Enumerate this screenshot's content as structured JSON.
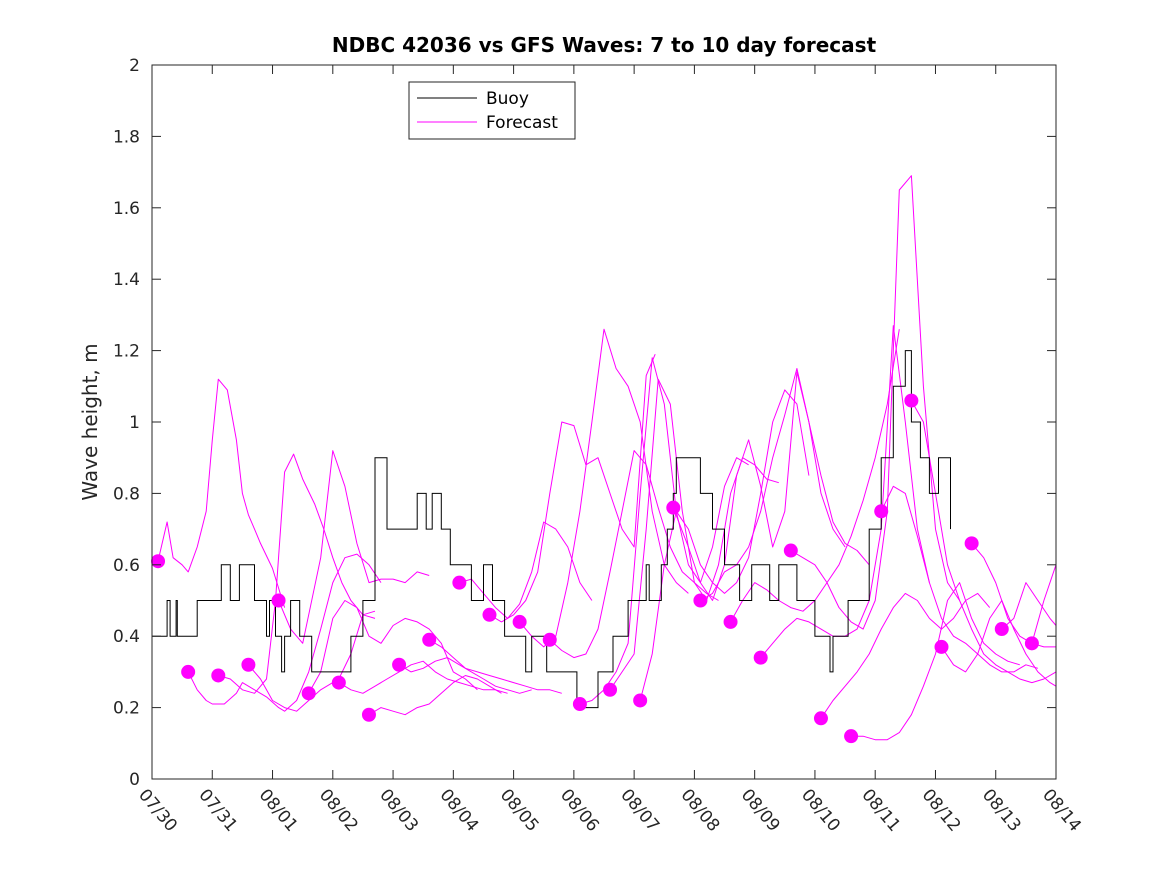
{
  "chart_data": {
    "type": "line",
    "title": "NDBC 42036 vs GFS Waves: 7 to 10 day forecast",
    "xlabel": "",
    "ylabel": "Wave height, m",
    "xlim": [
      0,
      15
    ],
    "ylim": [
      0,
      2
    ],
    "x_unit": "days since 07/30",
    "yticks": [
      0,
      0.2,
      0.4,
      0.6,
      0.8,
      1,
      1.2,
      1.4,
      1.6,
      1.8,
      2
    ],
    "ytick_labels": [
      "0",
      "0.2",
      "0.4",
      "0.6",
      "0.8",
      "1",
      "1.2",
      "1.4",
      "1.6",
      "1.8",
      "2"
    ],
    "xtick_labels": [
      "07/30",
      "07/31",
      "08/01",
      "08/02",
      "08/03",
      "08/04",
      "08/05",
      "08/06",
      "08/07",
      "08/08",
      "08/09",
      "08/10",
      "08/11",
      "08/12",
      "08/13",
      "08/14"
    ],
    "legend": {
      "position": "top-left",
      "entries": [
        {
          "label": "Buoy",
          "color": "#000000"
        },
        {
          "label": "Forecast",
          "color": "#ff00ff"
        }
      ]
    },
    "colors": {
      "buoy": "#000000",
      "forecast": "#ff00ff"
    },
    "buoy": {
      "name": "Buoy",
      "x": [
        0,
        0.25,
        0.3,
        0.4,
        0.42,
        0.5,
        0.75,
        1.15,
        1.3,
        1.45,
        1.7,
        1.9,
        1.95,
        2.05,
        2.15,
        2.2,
        2.3,
        2.45,
        2.55,
        2.65,
        2.8,
        3.0,
        3.3,
        3.5,
        3.7,
        3.9,
        4.4,
        4.55,
        4.65,
        4.8,
        4.95,
        5.3,
        5.5,
        5.65,
        5.85,
        6.2,
        6.3,
        6.55,
        7.05,
        7.4,
        7.65,
        7.9,
        8.2,
        8.25,
        8.45,
        8.55,
        8.65,
        8.7,
        9.1,
        9.3,
        9.5,
        9.75,
        9.95,
        10.25,
        10.4,
        10.7,
        11.0,
        11.25,
        11.3,
        11.55,
        11.9,
        12.1,
        12.3,
        12.5,
        12.6,
        12.75,
        12.9,
        13.05,
        13.25
      ],
      "y": [
        0.4,
        0.5,
        0.4,
        0.5,
        0.4,
        0.4,
        0.5,
        0.6,
        0.5,
        0.6,
        0.5,
        0.4,
        0.5,
        0.4,
        0.3,
        0.4,
        0.5,
        0.4,
        0.4,
        0.3,
        0.3,
        0.3,
        0.4,
        0.5,
        0.9,
        0.7,
        0.8,
        0.7,
        0.8,
        0.7,
        0.6,
        0.5,
        0.6,
        0.5,
        0.4,
        0.3,
        0.4,
        0.3,
        0.2,
        0.3,
        0.4,
        0.5,
        0.6,
        0.5,
        0.6,
        0.7,
        0.8,
        0.9,
        0.8,
        0.7,
        0.6,
        0.5,
        0.6,
        0.5,
        0.6,
        0.5,
        0.4,
        0.3,
        0.4,
        0.5,
        0.7,
        0.9,
        1.1,
        1.2,
        1.0,
        0.9,
        0.8,
        0.9,
        0.7
      ]
    },
    "series": [
      {
        "x": [
          0.1,
          0.25,
          0.35,
          0.5,
          0.6,
          0.75,
          0.9,
          1.0,
          1.1,
          1.25,
          1.4,
          1.5,
          1.6,
          1.7,
          1.8,
          2.0,
          2.2
        ],
        "values": [
          0.61,
          0.72,
          0.62,
          0.6,
          0.58,
          0.65,
          0.75,
          0.95,
          1.12,
          1.09,
          0.95,
          0.8,
          0.74,
          0.7,
          0.66,
          0.59,
          0.48
        ]
      },
      {
        "x": [
          0.6,
          0.75,
          0.9,
          1.0,
          1.2,
          1.4,
          1.5,
          1.7,
          1.9,
          2.1,
          2.2,
          2.4,
          2.6,
          2.8,
          3.0,
          3.2,
          3.4,
          3.6,
          3.8
        ],
        "values": [
          0.3,
          0.25,
          0.22,
          0.21,
          0.21,
          0.24,
          0.27,
          0.25,
          0.23,
          0.2,
          0.19,
          0.22,
          0.3,
          0.42,
          0.55,
          0.62,
          0.63,
          0.6,
          0.55
        ]
      },
      {
        "x": [
          1.1,
          1.3,
          1.5,
          1.7,
          1.9,
          2.05,
          2.2,
          2.35,
          2.5,
          2.7,
          2.85,
          3.0,
          3.15,
          3.3,
          3.5,
          3.7
        ],
        "values": [
          0.29,
          0.28,
          0.25,
          0.24,
          0.28,
          0.5,
          0.86,
          0.91,
          0.84,
          0.77,
          0.7,
          0.62,
          0.55,
          0.5,
          0.46,
          0.45
        ]
      },
      {
        "x": [
          1.6,
          1.8,
          2.0,
          2.2,
          2.4,
          2.6,
          2.8,
          3.0,
          3.1,
          3.3,
          3.5,
          3.7
        ],
        "values": [
          0.32,
          0.28,
          0.22,
          0.2,
          0.19,
          0.22,
          0.25,
          0.27,
          0.28,
          0.35,
          0.46,
          0.47
        ]
      },
      {
        "x": [
          2.1,
          2.3,
          2.5,
          2.6,
          2.8,
          3.0,
          3.2,
          3.4,
          3.6,
          3.8,
          4.0,
          4.2,
          4.4,
          4.6
        ],
        "values": [
          0.5,
          0.42,
          0.38,
          0.46,
          0.62,
          0.92,
          0.82,
          0.66,
          0.55,
          0.56,
          0.56,
          0.55,
          0.58,
          0.57
        ]
      },
      {
        "x": [
          2.6,
          2.8,
          3.0,
          3.2,
          3.4,
          3.6,
          3.8,
          4.0,
          4.2,
          4.4,
          4.6,
          4.8,
          5.0,
          5.2,
          5.4
        ],
        "values": [
          0.24,
          0.3,
          0.45,
          0.5,
          0.48,
          0.4,
          0.38,
          0.43,
          0.45,
          0.44,
          0.42,
          0.38,
          0.3,
          0.28,
          0.25
        ]
      },
      {
        "x": [
          3.1,
          3.3,
          3.5,
          3.7,
          3.9,
          4.1,
          4.3,
          4.5,
          4.7,
          4.9,
          5.1,
          5.3,
          5.5,
          5.7,
          5.9
        ],
        "values": [
          0.27,
          0.25,
          0.24,
          0.26,
          0.28,
          0.3,
          0.32,
          0.33,
          0.3,
          0.28,
          0.27,
          0.26,
          0.25,
          0.25,
          0.24
        ]
      },
      {
        "x": [
          3.6,
          3.8,
          4.0,
          4.2,
          4.4,
          4.6,
          4.8,
          5.0,
          5.2,
          5.4,
          5.6,
          5.8
        ],
        "values": [
          0.18,
          0.2,
          0.19,
          0.18,
          0.2,
          0.21,
          0.24,
          0.27,
          0.29,
          0.28,
          0.26,
          0.24
        ]
      },
      {
        "x": [
          4.1,
          4.3,
          4.5,
          4.7,
          4.9,
          5.1,
          5.3,
          5.5,
          5.7,
          5.9,
          6.1,
          6.3
        ],
        "values": [
          0.32,
          0.3,
          0.31,
          0.33,
          0.34,
          0.32,
          0.3,
          0.28,
          0.26,
          0.25,
          0.24,
          0.25
        ]
      },
      {
        "x": [
          4.6,
          4.8,
          5.0,
          5.2,
          5.4,
          5.6,
          5.8,
          6.0,
          6.2,
          6.4,
          6.6,
          6.8
        ],
        "values": [
          0.39,
          0.37,
          0.34,
          0.31,
          0.3,
          0.29,
          0.28,
          0.27,
          0.26,
          0.25,
          0.25,
          0.24
        ]
      },
      {
        "x": [
          5.1,
          5.3,
          5.5,
          5.7,
          5.9,
          6.1,
          6.3,
          6.5,
          6.7,
          6.9,
          7.1,
          7.3
        ],
        "values": [
          0.55,
          0.56,
          0.52,
          0.48,
          0.45,
          0.49,
          0.58,
          0.72,
          0.7,
          0.65,
          0.55,
          0.5
        ]
      },
      {
        "x": [
          5.6,
          5.8,
          6.0,
          6.2,
          6.4,
          6.6,
          6.8,
          7.0,
          7.2,
          7.4,
          7.6,
          7.8,
          8.0,
          8.2,
          8.35
        ],
        "values": [
          0.46,
          0.44,
          0.46,
          0.5,
          0.58,
          0.8,
          1.0,
          0.99,
          0.88,
          0.9,
          0.8,
          0.7,
          0.65,
          1.13,
          1.19
        ]
      },
      {
        "x": [
          6.1,
          6.3,
          6.5,
          6.7,
          6.9,
          7.1,
          7.3,
          7.5,
          7.7,
          7.9,
          8.1,
          8.3,
          8.5,
          8.7,
          8.9
        ],
        "values": [
          0.44,
          0.4,
          0.37,
          0.4,
          0.55,
          0.75,
          1.0,
          1.26,
          1.15,
          1.1,
          1.0,
          0.75,
          0.6,
          0.55,
          0.52
        ]
      },
      {
        "x": [
          6.6,
          6.8,
          7.0,
          7.2,
          7.4,
          7.6,
          7.8,
          8.0,
          8.2,
          8.4,
          8.6,
          8.8,
          9.0,
          9.2,
          9.4
        ],
        "values": [
          0.39,
          0.36,
          0.34,
          0.35,
          0.42,
          0.58,
          0.75,
          0.92,
          0.88,
          0.76,
          0.65,
          0.58,
          0.55,
          0.52,
          0.5
        ]
      },
      {
        "x": [
          7.1,
          7.3,
          7.5,
          7.7,
          7.9,
          8.1,
          8.3,
          8.5,
          8.7,
          8.9,
          9.1,
          9.3,
          9.5,
          9.7,
          9.9
        ],
        "values": [
          0.21,
          0.22,
          0.25,
          0.3,
          0.38,
          0.8,
          1.18,
          1.05,
          0.75,
          0.6,
          0.55,
          0.65,
          0.82,
          0.9,
          0.88
        ]
      },
      {
        "x": [
          7.6,
          7.8,
          8.0,
          8.2,
          8.4,
          8.6,
          8.8,
          9.0,
          9.2,
          9.4,
          9.6,
          9.8,
          10.0,
          10.2,
          10.4
        ],
        "values": [
          0.25,
          0.3,
          0.35,
          0.7,
          1.12,
          1.05,
          0.75,
          0.55,
          0.5,
          0.6,
          0.8,
          0.9,
          0.88,
          0.84,
          0.83
        ]
      },
      {
        "x": [
          8.1,
          8.3,
          8.5,
          8.7,
          8.9,
          9.1,
          9.3,
          9.5,
          9.7,
          9.9,
          10.1,
          10.3,
          10.5,
          10.7,
          10.9
        ],
        "values": [
          0.22,
          0.35,
          0.6,
          0.75,
          0.7,
          0.6,
          0.55,
          0.52,
          0.55,
          0.62,
          0.8,
          1.0,
          1.09,
          1.05,
          0.85
        ]
      },
      {
        "x": [
          8.65,
          8.9,
          9.1,
          9.3,
          9.5,
          9.7,
          9.9,
          10.1,
          10.3,
          10.5,
          10.7,
          10.9,
          11.1,
          11.3,
          11.5
        ],
        "values": [
          0.76,
          0.65,
          0.55,
          0.5,
          0.6,
          0.85,
          0.95,
          0.82,
          0.65,
          0.75,
          1.14,
          1.0,
          0.8,
          0.7,
          0.65
        ]
      },
      {
        "x": [
          9.1,
          9.3,
          9.5,
          9.7,
          9.9,
          10.1,
          10.3,
          10.5,
          10.7,
          10.9,
          11.1,
          11.3,
          11.5,
          11.7,
          11.9
        ],
        "values": [
          0.5,
          0.52,
          0.58,
          0.6,
          0.65,
          0.75,
          0.9,
          1.02,
          1.15,
          1.0,
          0.85,
          0.72,
          0.66,
          0.64,
          0.6
        ]
      },
      {
        "x": [
          9.6,
          9.8,
          10.0,
          10.2,
          10.4,
          10.6,
          10.8,
          11.0,
          11.2,
          11.4,
          11.6,
          11.8,
          12.0,
          12.2,
          12.4
        ],
        "values": [
          0.44,
          0.5,
          0.55,
          0.53,
          0.5,
          0.48,
          0.47,
          0.5,
          0.55,
          0.6,
          0.68,
          0.78,
          0.9,
          1.05,
          1.26
        ]
      },
      {
        "x": [
          10.1,
          10.3,
          10.5,
          10.7,
          10.9,
          11.1,
          11.3,
          11.5,
          11.7,
          11.9,
          12.1,
          12.3,
          12.5,
          12.7,
          12.9
        ],
        "values": [
          0.34,
          0.38,
          0.42,
          0.45,
          0.44,
          0.42,
          0.4,
          0.4,
          0.42,
          0.5,
          0.7,
          1.27,
          1.0,
          0.7,
          0.55
        ]
      },
      {
        "x": [
          10.6,
          10.8,
          11.0,
          11.2,
          11.4,
          11.6,
          11.8,
          12.0,
          12.2,
          12.4,
          12.6,
          12.8,
          13.0,
          13.2,
          13.4
        ],
        "values": [
          0.64,
          0.62,
          0.6,
          0.55,
          0.48,
          0.44,
          0.42,
          0.5,
          0.75,
          1.65,
          1.69,
          1.1,
          0.7,
          0.55,
          0.5
        ]
      },
      {
        "x": [
          11.1,
          11.3,
          11.5,
          11.7,
          11.9,
          12.1,
          12.3,
          12.5,
          12.7,
          12.9,
          13.1,
          13.3,
          13.5,
          13.7,
          13.9
        ],
        "values": [
          0.17,
          0.22,
          0.26,
          0.3,
          0.35,
          0.42,
          0.48,
          0.52,
          0.5,
          0.45,
          0.42,
          0.45,
          0.5,
          0.52,
          0.48
        ]
      },
      {
        "x": [
          11.6,
          11.8,
          12.0,
          12.2,
          12.4,
          12.6,
          12.8,
          13.0,
          13.2,
          13.4,
          13.6,
          13.8,
          14.0,
          14.2,
          14.4
        ],
        "values": [
          0.12,
          0.12,
          0.11,
          0.11,
          0.13,
          0.18,
          0.26,
          0.35,
          0.5,
          0.55,
          0.45,
          0.38,
          0.35,
          0.33,
          0.32
        ]
      },
      {
        "x": [
          12.1,
          12.3,
          12.5,
          12.7,
          12.9,
          13.1,
          13.3,
          13.5,
          13.7,
          13.9,
          14.1,
          14.3,
          14.5,
          14.7
        ],
        "values": [
          0.75,
          0.82,
          0.8,
          0.68,
          0.55,
          0.45,
          0.4,
          0.38,
          0.35,
          0.32,
          0.3,
          0.3,
          0.32,
          0.31
        ]
      },
      {
        "x": [
          12.6,
          12.8,
          13.0,
          13.2,
          13.4,
          13.6,
          13.8,
          14.0,
          14.2,
          14.4,
          14.6,
          14.8,
          15.0
        ],
        "values": [
          1.06,
          1.0,
          0.8,
          0.6,
          0.5,
          0.42,
          0.35,
          0.32,
          0.3,
          0.28,
          0.27,
          0.28,
          0.3
        ]
      },
      {
        "x": [
          13.1,
          13.3,
          13.5,
          13.7,
          13.9,
          14.1,
          14.3,
          14.5,
          14.7,
          14.9,
          15.0
        ],
        "values": [
          0.37,
          0.32,
          0.3,
          0.35,
          0.45,
          0.5,
          0.42,
          0.35,
          0.3,
          0.27,
          0.26
        ]
      },
      {
        "x": [
          13.6,
          13.8,
          14.0,
          14.2,
          14.4,
          14.6,
          14.8,
          15.0
        ],
        "values": [
          0.66,
          0.62,
          0.55,
          0.45,
          0.4,
          0.38,
          0.37,
          0.37
        ]
      },
      {
        "x": [
          14.1,
          14.3,
          14.5,
          14.7,
          14.9,
          15.0
        ],
        "values": [
          0.42,
          0.45,
          0.55,
          0.5,
          0.45,
          0.43
        ]
      },
      {
        "x": [
          14.6,
          14.8,
          15.0
        ],
        "values": [
          0.38,
          0.5,
          0.6
        ]
      }
    ],
    "markers": {
      "x": [
        0.1,
        0.6,
        1.1,
        1.6,
        2.1,
        2.6,
        3.1,
        3.6,
        4.1,
        4.6,
        5.1,
        5.6,
        6.1,
        6.6,
        7.1,
        7.6,
        8.1,
        8.65,
        9.1,
        9.6,
        10.1,
        10.6,
        11.1,
        11.6,
        12.1,
        12.6,
        13.1,
        13.6,
        14.1,
        14.6
      ],
      "y": [
        0.61,
        0.3,
        0.29,
        0.32,
        0.5,
        0.24,
        0.27,
        0.18,
        0.32,
        0.39,
        0.55,
        0.46,
        0.44,
        0.39,
        0.21,
        0.25,
        0.22,
        0.76,
        0.5,
        0.44,
        0.34,
        0.64,
        0.17,
        0.12,
        0.75,
        1.06,
        0.37,
        0.66,
        0.42,
        0.38
      ]
    }
  }
}
